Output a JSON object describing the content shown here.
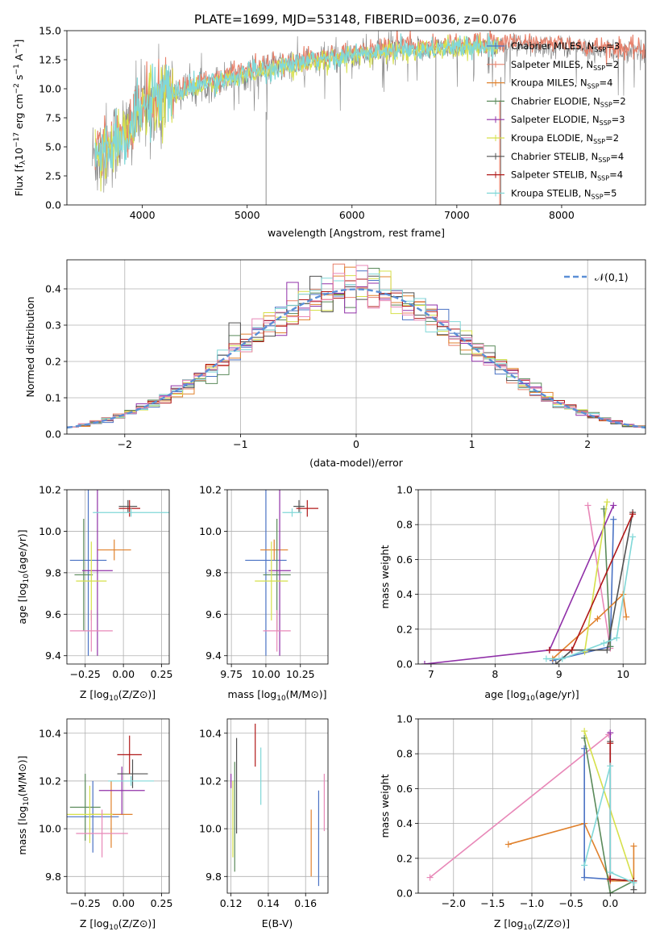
{
  "figure_title": "PLATE=1699, MJD=53148, FIBERID=0036, z=0.076",
  "colors": {
    "chabrier_miles": "#4a72c4",
    "salpeter_miles": "#e8806a",
    "kroupa_miles": "#e0812c",
    "chabrier_elodie": "#5a8a5a",
    "salpeter_elodie": "#9030a8",
    "kroupa_elodie": "#d6e04a",
    "chabrier_stelib": "#505050",
    "salpeter_stelib": "#b01818",
    "kroupa_stelib": "#80d8d8",
    "pink": "#e888b8",
    "data": "#808080",
    "gauss": "#5b8fd6"
  },
  "chart_data": [
    {
      "id": "spectrum",
      "type": "line",
      "title": "PLATE=1699, MJD=53148, FIBERID=0036, z=0.076",
      "xlabel": "wavelength [Angstrom, rest frame]",
      "ylabel": "Flux [f_λ 10^-17 erg cm^-2 s^-1 A^-1]",
      "xlim": [
        3280,
        8800
      ],
      "ylim": [
        0,
        15
      ],
      "xticks": [
        4000,
        5000,
        6000,
        7000,
        8000
      ],
      "yticks": [
        0.0,
        2.5,
        5.0,
        7.5,
        10.0,
        12.5,
        15.0
      ],
      "grid": false,
      "legend_position": "top-right",
      "series": [
        {
          "name": "Chabrier MILES, N_SSP=3",
          "color": "#4a72c4"
        },
        {
          "name": "Salpeter MILES, N_SSP=2",
          "color": "#e8806a"
        },
        {
          "name": "Kroupa MILES, N_SSP=4",
          "color": "#e0812c"
        },
        {
          "name": "Chabrier ELODIE, N_SSP=2",
          "color": "#5a8a5a"
        },
        {
          "name": "Salpeter ELODIE, N_SSP=3",
          "color": "#9030a8"
        },
        {
          "name": "Kroupa ELODIE, N_SSP=2",
          "color": "#d6e04a"
        },
        {
          "name": "Chabrier STELIB, N_SSP=4",
          "color": "#505050"
        },
        {
          "name": "Salpeter STELIB, N_SSP=4",
          "color": "#b01818"
        },
        {
          "name": "Kroupa STELIB, N_SSP=5",
          "color": "#80d8d8"
        }
      ],
      "continuum": {
        "x": [
          3500,
          3700,
          3900,
          4000,
          4200,
          4500,
          5000,
          5500,
          6000,
          6500,
          7000,
          7500,
          8000,
          8500,
          8800
        ],
        "y": [
          3.8,
          5.2,
          6.8,
          8.2,
          9.2,
          10.2,
          11.3,
          12.2,
          12.9,
          13.3,
          13.6,
          13.7,
          13.6,
          13.2,
          13.0
        ]
      },
      "model_extent": {
        "kroupa_stelib": [
          3550,
          7400
        ],
        "salpeter_miles": [
          3550,
          7400
        ],
        "miles_extended": [
          7400,
          8800
        ]
      }
    },
    {
      "id": "residuals",
      "type": "line",
      "xlabel": "(data-model)/error",
      "ylabel": "Normed distribution",
      "xlim": [
        -2.5,
        2.5
      ],
      "ylim": [
        0,
        0.48
      ],
      "xticks": [
        -2,
        -1,
        0,
        1,
        2
      ],
      "yticks": [
        0.0,
        0.1,
        0.2,
        0.3,
        0.4
      ],
      "grid": true,
      "legend_position": "top-right",
      "legend": "𝒩(0,1)",
      "bin_width": 0.1
    },
    {
      "id": "age_vs_Z",
      "type": "scatter",
      "xlabel": "Z [log10(Z/Z⊙)]",
      "ylabel": "age [log10(age/yr)]",
      "xlim": [
        -0.37,
        0.3
      ],
      "ylim": [
        9.36,
        10.2
      ],
      "xticks": [
        -0.25,
        0.0,
        0.25
      ],
      "yticks": [
        9.4,
        9.6,
        9.8,
        10.0,
        10.2
      ],
      "grid": true,
      "points": [
        {
          "color": "#4a72c4",
          "x": -0.23,
          "xerr": 0.12,
          "y": 9.86,
          "yerr": 0.46
        },
        {
          "color": "#e0812c",
          "x": -0.06,
          "xerr": 0.11,
          "y": 9.91,
          "yerr": 0.05
        },
        {
          "color": "#5a8a5a",
          "x": -0.26,
          "xerr": 0.06,
          "y": 9.79,
          "yerr": 0.27
        },
        {
          "color": "#9030a8",
          "x": -0.17,
          "xerr": 0.1,
          "y": 9.81,
          "yerr": 0.41
        },
        {
          "color": "#d6e04a",
          "x": -0.21,
          "xerr": 0.1,
          "y": 9.76,
          "yerr": 0.19
        },
        {
          "color": "#e888b8",
          "x": -0.21,
          "xerr": 0.14,
          "y": 9.52,
          "yerr": 0.1
        },
        {
          "color": "#505050",
          "x": 0.03,
          "xerr": 0.06,
          "y": 10.12,
          "yerr": 0.03
        },
        {
          "color": "#b01818",
          "x": 0.04,
          "xerr": 0.07,
          "y": 10.11,
          "yerr": 0.04
        },
        {
          "color": "#80d8d8",
          "x": 0.05,
          "xerr": 0.25,
          "y": 10.09,
          "yerr": 0.02
        }
      ]
    },
    {
      "id": "age_vs_mass",
      "type": "scatter",
      "xlabel": "mass [log10(M/M⊙)]",
      "ylabel": "",
      "xlim": [
        9.72,
        10.45
      ],
      "ylim": [
        9.36,
        10.2
      ],
      "xticks": [
        9.75,
        10.0,
        10.25
      ],
      "yticks": [
        9.4,
        9.6,
        9.8,
        10.0,
        10.2
      ],
      "grid": true,
      "points": [
        {
          "color": "#4a72c4",
          "x": 10.0,
          "xerr": 0.15,
          "y": 9.86,
          "yerr": 0.46
        },
        {
          "color": "#e0812c",
          "x": 10.06,
          "xerr": 0.1,
          "y": 9.91,
          "yerr": 0.05
        },
        {
          "color": "#5a8a5a",
          "x": 10.08,
          "xerr": 0.1,
          "y": 9.79,
          "yerr": 0.27
        },
        {
          "color": "#9030a8",
          "x": 10.1,
          "xerr": 0.08,
          "y": 9.81,
          "yerr": 0.41
        },
        {
          "color": "#d6e04a",
          "x": 10.04,
          "xerr": 0.12,
          "y": 9.76,
          "yerr": 0.19
        },
        {
          "color": "#e888b8",
          "x": 10.08,
          "xerr": 0.1,
          "y": 9.52,
          "yerr": 0.1
        },
        {
          "color": "#505050",
          "x": 10.24,
          "xerr": 0.04,
          "y": 10.12,
          "yerr": 0.03
        },
        {
          "color": "#b01818",
          "x": 10.3,
          "xerr": 0.08,
          "y": 10.11,
          "yerr": 0.04
        },
        {
          "color": "#80d8d8",
          "x": 10.19,
          "xerr": 0.07,
          "y": 10.09,
          "yerr": 0.02
        }
      ]
    },
    {
      "id": "weight_vs_age",
      "type": "line",
      "xlabel": "age [log10(age/yr)]",
      "ylabel": "mass weight",
      "xlim": [
        6.8,
        10.35
      ],
      "ylim": [
        0,
        1.0
      ],
      "xticks": [
        7,
        8,
        9,
        10
      ],
      "yticks": [
        0.0,
        0.2,
        0.4,
        0.6,
        0.8,
        1.0
      ],
      "grid": true,
      "series": [
        {
          "color": "#4a72c4",
          "x": [
            8.9,
            9.8,
            9.85
          ],
          "y": [
            0.02,
            0.1,
            0.83
          ]
        },
        {
          "color": "#e888b8",
          "x": [
            9.45,
            9.8
          ],
          "y": [
            0.91,
            0.09
          ]
        },
        {
          "color": "#e0812c",
          "x": [
            8.9,
            9.6,
            10.0,
            10.05
          ],
          "y": [
            0.03,
            0.26,
            0.4,
            0.27
          ]
        },
        {
          "color": "#5a8a5a",
          "x": [
            9.7,
            9.8
          ],
          "y": [
            0.89,
            0.1
          ]
        },
        {
          "color": "#9030a8",
          "x": [
            6.9,
            8.85,
            9.85
          ],
          "y": [
            0.0,
            0.08,
            0.91
          ]
        },
        {
          "color": "#d6e04a",
          "x": [
            9.4,
            9.75
          ],
          "y": [
            0.07,
            0.93
          ]
        },
        {
          "color": "#505050",
          "x": [
            8.95,
            9.2,
            9.75,
            10.15
          ],
          "y": [
            0.0,
            0.08,
            0.08,
            0.87
          ]
        },
        {
          "color": "#b01818",
          "x": [
            8.85,
            9.2,
            10.15
          ],
          "y": [
            0.08,
            0.08,
            0.86
          ]
        },
        {
          "color": "#80d8d8",
          "x": [
            8.8,
            9.05,
            9.7,
            9.9,
            10.15
          ],
          "y": [
            0.03,
            0.03,
            0.12,
            0.15,
            0.73
          ]
        }
      ]
    },
    {
      "id": "mass_vs_Z",
      "type": "scatter",
      "xlabel": "Z [log10(Z/Z⊙)]",
      "ylabel": "mass [log10(M/M⊙)]",
      "xlim": [
        -0.37,
        0.3
      ],
      "ylim": [
        9.73,
        10.46
      ],
      "xticks": [
        -0.25,
        0.0,
        0.25
      ],
      "yticks": [
        9.8,
        10.0,
        10.2,
        10.4
      ],
      "grid": true,
      "points": [
        {
          "color": "#4a72c4",
          "x": -0.2,
          "xerr": 0.17,
          "y": 10.05,
          "yerr": 0.15
        },
        {
          "color": "#e0812c",
          "x": -0.08,
          "xerr": 0.14,
          "y": 10.06,
          "yerr": 0.14
        },
        {
          "color": "#5a8a5a",
          "x": -0.25,
          "xerr": 0.1,
          "y": 10.09,
          "yerr": 0.14
        },
        {
          "color": "#9030a8",
          "x": -0.01,
          "xerr": 0.15,
          "y": 10.16,
          "yerr": 0.1
        },
        {
          "color": "#d6e04a",
          "x": -0.22,
          "xerr": 0.15,
          "y": 10.06,
          "yerr": 0.12
        },
        {
          "color": "#e888b8",
          "x": -0.14,
          "xerr": 0.17,
          "y": 9.98,
          "yerr": 0.1
        },
        {
          "color": "#505050",
          "x": 0.06,
          "xerr": 0.1,
          "y": 10.23,
          "yerr": 0.06
        },
        {
          "color": "#b01818",
          "x": 0.04,
          "xerr": 0.08,
          "y": 10.31,
          "yerr": 0.08
        },
        {
          "color": "#80d8d8",
          "x": 0.05,
          "xerr": 0.15,
          "y": 10.2,
          "yerr": 0.02
        }
      ]
    },
    {
      "id": "mass_vs_ebv",
      "type": "scatter",
      "xlabel": "E(B-V)",
      "ylabel": "",
      "xlim": [
        0.118,
        0.172
      ],
      "ylim": [
        9.73,
        10.46
      ],
      "xticks": [
        0.12,
        0.14,
        0.16
      ],
      "yticks": [
        9.8,
        10.0,
        10.2,
        10.4
      ],
      "grid": true,
      "points": [
        {
          "color": "#9030a8",
          "x": 0.12,
          "y": 10.2,
          "yerr": 0.03
        },
        {
          "color": "#d6e04a",
          "x": 0.121,
          "y": 10.04,
          "yerr": 0.16
        },
        {
          "color": "#5a8a5a",
          "x": 0.122,
          "y": 10.05,
          "yerr": 0.23
        },
        {
          "color": "#505050",
          "x": 0.123,
          "y": 10.18,
          "yerr": 0.2
        },
        {
          "color": "#b01818",
          "x": 0.133,
          "y": 10.35,
          "yerr": 0.09
        },
        {
          "color": "#80d8d8",
          "x": 0.136,
          "y": 10.22,
          "yerr": 0.12
        },
        {
          "color": "#e0812c",
          "x": 0.163,
          "y": 9.94,
          "yerr": 0.14
        },
        {
          "color": "#4a72c4",
          "x": 0.167,
          "y": 9.96,
          "yerr": 0.2
        },
        {
          "color": "#e888b8",
          "x": 0.17,
          "y": 10.11,
          "yerr": 0.12
        }
      ]
    },
    {
      "id": "weight_vs_Z",
      "type": "line",
      "xlabel": "Z [log10(Z/Z⊙)]",
      "ylabel": "mass weight",
      "xlim": [
        -2.45,
        0.45
      ],
      "ylim": [
        0,
        1.0
      ],
      "xticks": [
        -2.0,
        -1.5,
        -1.0,
        -0.5,
        0.0
      ],
      "yticks": [
        0.0,
        0.2,
        0.4,
        0.6,
        0.8,
        1.0
      ],
      "grid": true,
      "series": [
        {
          "color": "#e888b8",
          "x": [
            -2.3,
            -0.02
          ],
          "y": [
            0.09,
            0.91
          ]
        },
        {
          "color": "#e0812c",
          "x": [
            -1.3,
            -0.33,
            0.0,
            0.3,
            0.3
          ],
          "y": [
            0.28,
            0.4,
            0.07,
            0.07,
            0.27
          ]
        },
        {
          "color": "#4a72c4",
          "x": [
            -0.33,
            -0.33,
            0.3
          ],
          "y": [
            0.83,
            0.09,
            0.07
          ]
        },
        {
          "color": "#5a8a5a",
          "x": [
            -0.33,
            0.0,
            0.3
          ],
          "y": [
            0.89,
            0.0,
            0.07
          ]
        },
        {
          "color": "#9030a8",
          "x": [
            0.0,
            0.0
          ],
          "y": [
            0.92,
            0.08
          ]
        },
        {
          "color": "#d6e04a",
          "x": [
            -0.33,
            0.3
          ],
          "y": [
            0.93,
            0.07
          ]
        },
        {
          "color": "#505050",
          "x": [
            0.0,
            0.0,
            0.3,
            0.3
          ],
          "y": [
            0.87,
            0.08,
            0.07,
            0.02
          ]
        },
        {
          "color": "#b01818",
          "x": [
            0.0,
            0.0,
            0.3
          ],
          "y": [
            0.86,
            0.08,
            0.07
          ]
        },
        {
          "color": "#80d8d8",
          "x": [
            -0.33,
            0.0,
            0.0,
            0.3
          ],
          "y": [
            0.16,
            0.73,
            0.12,
            0.06
          ]
        }
      ]
    }
  ]
}
